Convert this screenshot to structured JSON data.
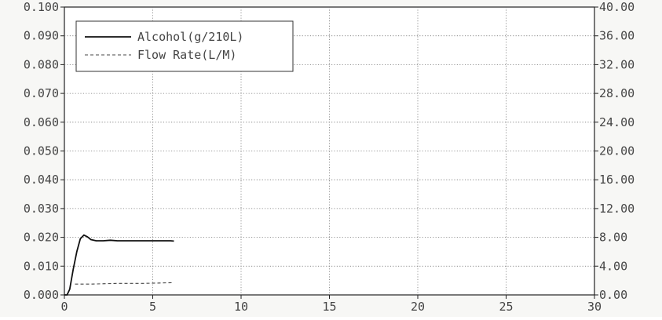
{
  "chart_data": {
    "type": "line",
    "x_ticks": [
      "0",
      "5",
      "10",
      "15",
      "20",
      "25",
      "30"
    ],
    "xlim": [
      0,
      30
    ],
    "left_axis": {
      "ylim": [
        0,
        0.1
      ],
      "ticks": [
        "0.000",
        "0.010",
        "0.020",
        "0.030",
        "0.040",
        "0.050",
        "0.060",
        "0.070",
        "0.080",
        "0.090",
        "0.100"
      ]
    },
    "right_axis": {
      "ylim": [
        0,
        40
      ],
      "ticks": [
        "0.00",
        "4.00",
        "8.00",
        "12.00",
        "16.00",
        "20.00",
        "24.00",
        "28.00",
        "32.00",
        "36.00",
        "40.00"
      ]
    },
    "grid": true,
    "legend": {
      "placement": "top-left",
      "entries": [
        "Alcohol(g/210L)",
        "Flow Rate(L/M)"
      ]
    },
    "series": [
      {
        "name": "Alcohol(g/210L)",
        "axis": "left",
        "line_style": "solid",
        "color": "#111111",
        "x": [
          0,
          0.15,
          0.3,
          0.5,
          0.7,
          0.9,
          1.1,
          1.3,
          1.5,
          1.8,
          2.2,
          2.6,
          3.0,
          3.5,
          4.0,
          4.5,
          5.0,
          5.5,
          6.0,
          6.2
        ],
        "y": [
          0.0,
          0.0,
          0.002,
          0.009,
          0.015,
          0.0195,
          0.0208,
          0.0202,
          0.0192,
          0.0188,
          0.0188,
          0.019,
          0.0188,
          0.0188,
          0.0188,
          0.0188,
          0.0188,
          0.0188,
          0.0188,
          0.0187
        ]
      },
      {
        "name": "Flow Rate(L/M)",
        "axis": "right",
        "line_style": "dashed",
        "color": "#444444",
        "x": [
          0.6,
          1.5,
          3.0,
          4.5,
          6.2
        ],
        "y": [
          1.5,
          1.5,
          1.6,
          1.6,
          1.7
        ]
      }
    ]
  }
}
